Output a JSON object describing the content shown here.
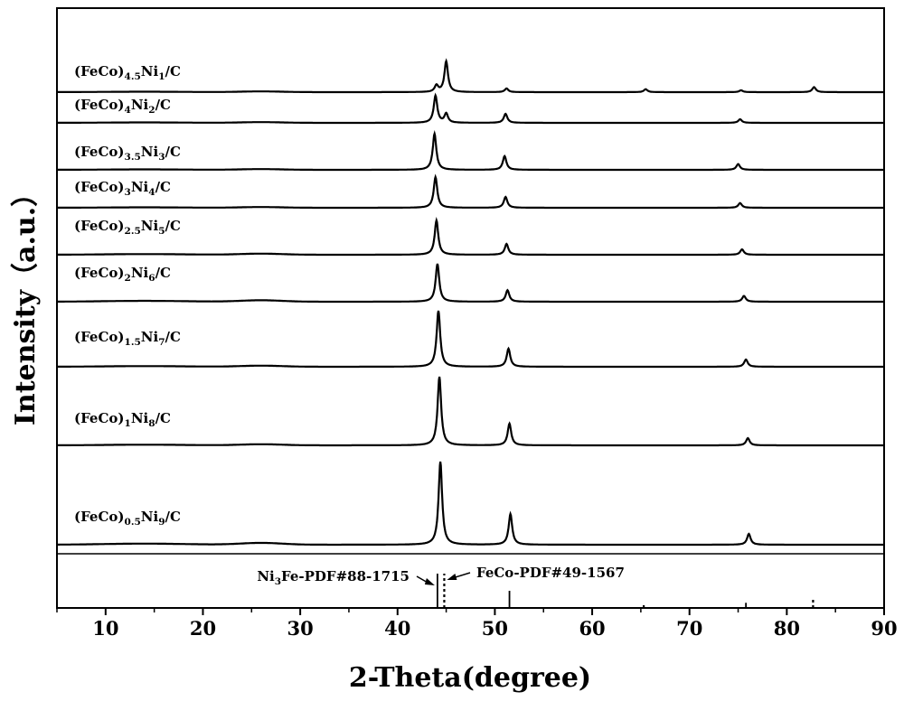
{
  "chart_data": {
    "type": "line",
    "title": "",
    "xlabel": "2-Theta(degree)",
    "ylabel": "Intensity（a.u.）",
    "xlim": [
      5,
      90
    ],
    "xticks": [
      10,
      20,
      30,
      40,
      50,
      60,
      70,
      80,
      90
    ],
    "yticks": "none",
    "grid": false,
    "legend": "none",
    "series": [
      {
        "name": "(FeCo)4.5Ni1/C",
        "label_parts": [
          {
            "t": "(FeCo)"
          },
          {
            "t": "4.5",
            "sub": true
          },
          {
            "t": "Ni"
          },
          {
            "t": "1",
            "sub": true
          },
          {
            "t": "/C"
          }
        ],
        "peaks": [
          [
            44.0,
            0.18
          ],
          [
            45.0,
            0.85
          ],
          [
            51.2,
            0.1
          ],
          [
            65.5,
            0.08
          ],
          [
            75.3,
            0.05
          ],
          [
            82.8,
            0.14
          ]
        ],
        "hump": 0.02
      },
      {
        "name": "(FeCo)4Ni2/C",
        "label_parts": [
          {
            "t": "(FeCo)"
          },
          {
            "t": "4",
            "sub": true
          },
          {
            "t": "Ni"
          },
          {
            "t": "2",
            "sub": true
          },
          {
            "t": "/C"
          }
        ],
        "peaks": [
          [
            43.9,
            0.75
          ],
          [
            45.0,
            0.25
          ],
          [
            51.1,
            0.25
          ],
          [
            75.2,
            0.1
          ]
        ],
        "hump": 0.02
      },
      {
        "name": "(FeCo)3.5Ni3/C",
        "label_parts": [
          {
            "t": "(FeCo)"
          },
          {
            "t": "3.5",
            "sub": true
          },
          {
            "t": "Ni"
          },
          {
            "t": "3",
            "sub": true
          },
          {
            "t": "/C"
          }
        ],
        "peaks": [
          [
            43.8,
            1.0
          ],
          [
            51.0,
            0.38
          ],
          [
            75.0,
            0.16
          ]
        ],
        "hump": 0.02
      },
      {
        "name": "(FeCo)3Ni4/C",
        "label_parts": [
          {
            "t": "(FeCo)"
          },
          {
            "t": "3",
            "sub": true
          },
          {
            "t": "Ni"
          },
          {
            "t": "4",
            "sub": true
          },
          {
            "t": "/C"
          }
        ],
        "peaks": [
          [
            43.9,
            0.85
          ],
          [
            51.1,
            0.3
          ],
          [
            75.2,
            0.13
          ]
        ],
        "hump": 0.02
      },
      {
        "name": "(FeCo)2.5Ni5/C",
        "label_parts": [
          {
            "t": "(FeCo)"
          },
          {
            "t": "2.5",
            "sub": true
          },
          {
            "t": "Ni"
          },
          {
            "t": "5",
            "sub": true
          },
          {
            "t": "/C"
          }
        ],
        "peaks": [
          [
            44.0,
            0.95
          ],
          [
            51.2,
            0.3
          ],
          [
            75.4,
            0.15
          ]
        ],
        "hump": 0.03
      },
      {
        "name": "(FeCo)2Ni6/C",
        "label_parts": [
          {
            "t": "(FeCo)"
          },
          {
            "t": "2",
            "sub": true
          },
          {
            "t": "Ni"
          },
          {
            "t": "6",
            "sub": true
          },
          {
            "t": "/C"
          }
        ],
        "peaks": [
          [
            44.1,
            1.05
          ],
          [
            51.3,
            0.32
          ],
          [
            75.6,
            0.16
          ]
        ],
        "hump": 0.04
      },
      {
        "name": "(FeCo)1.5Ni7/C",
        "label_parts": [
          {
            "t": "(FeCo)"
          },
          {
            "t": "1.5",
            "sub": true
          },
          {
            "t": "Ni"
          },
          {
            "t": "7",
            "sub": true
          },
          {
            "t": "/C"
          }
        ],
        "peaks": [
          [
            44.2,
            1.55
          ],
          [
            51.4,
            0.5
          ],
          [
            75.8,
            0.2
          ]
        ],
        "hump": 0.03
      },
      {
        "name": "(FeCo)1Ni8/C",
        "label_parts": [
          {
            "t": "(FeCo)"
          },
          {
            "t": "1",
            "sub": true
          },
          {
            "t": "Ni"
          },
          {
            "t": "8",
            "sub": true
          },
          {
            "t": "/C"
          }
        ],
        "peaks": [
          [
            44.3,
            1.9
          ],
          [
            51.5,
            0.6
          ],
          [
            76.0,
            0.2
          ]
        ],
        "hump": 0.03
      },
      {
        "name": "(FeCo)0.5Ni9/C",
        "label_parts": [
          {
            "t": "(FeCo)"
          },
          {
            "t": "0.5",
            "sub": true
          },
          {
            "t": "Ni"
          },
          {
            "t": "9",
            "sub": true
          },
          {
            "t": "/C"
          }
        ],
        "peaks": [
          [
            44.4,
            2.3
          ],
          [
            51.6,
            0.85
          ],
          [
            76.1,
            0.3
          ]
        ],
        "hump": 0.05
      }
    ],
    "references": [
      {
        "name": "Ni3Fe-PDF#88-1715",
        "label_parts": [
          {
            "t": "Ni"
          },
          {
            "t": "3",
            "sub": true
          },
          {
            "t": "Fe-PDF#88-1715"
          }
        ],
        "style": "solid",
        "lines": [
          [
            44.1,
            1.0
          ],
          [
            51.5,
            0.5
          ],
          [
            75.8,
            0.15
          ]
        ]
      },
      {
        "name": "FeCo-PDF#49-1567",
        "label_parts": [
          {
            "t": "FeCo-PDF#49-1567"
          }
        ],
        "style": "dotted",
        "lines": [
          [
            44.8,
            1.0
          ],
          [
            65.3,
            0.12
          ],
          [
            82.7,
            0.3
          ]
        ]
      }
    ],
    "colors": {
      "line": "#000000",
      "background": "#ffffff"
    }
  }
}
